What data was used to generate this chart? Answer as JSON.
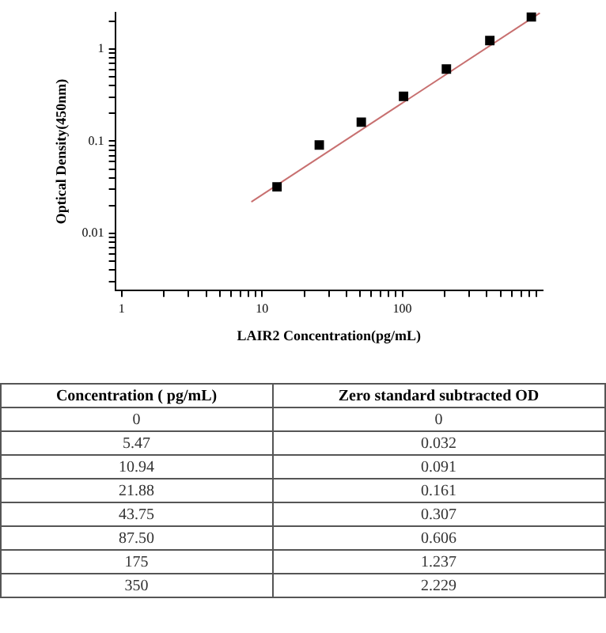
{
  "chart_data": [
    {
      "type": "scatter",
      "xlabel": "LAIR2 Concentration(pg/mL)",
      "ylabel": "Optical Density(450nm)",
      "log": "xy",
      "grid": false,
      "legend": false,
      "xlim": [
        0.9,
        1000
      ],
      "ylim": [
        0.0024,
        2.5
      ],
      "xticks": [
        1,
        {
          "value": 2,
          "label": null
        },
        {
          "value": 3,
          "label": null
        },
        {
          "value": 4,
          "label": null
        },
        {
          "value": 5,
          "label": null
        },
        {
          "value": 6,
          "label": null
        },
        {
          "value": 7,
          "label": null
        },
        {
          "value": 8,
          "label": null
        },
        {
          "value": 9,
          "label": null
        },
        10,
        {
          "value": 20,
          "label": null
        },
        {
          "value": 30,
          "label": null
        },
        {
          "value": 40,
          "label": null
        },
        {
          "value": 50,
          "label": null
        },
        {
          "value": 60,
          "label": null
        },
        {
          "value": 70,
          "label": null
        },
        {
          "value": 80,
          "label": null
        },
        {
          "value": 90,
          "label": null
        },
        100,
        {
          "value": 200,
          "label": null
        },
        {
          "value": 300,
          "label": null
        },
        {
          "value": 400,
          "label": null
        },
        {
          "value": 500,
          "label": null
        },
        {
          "value": 600,
          "label": null
        },
        {
          "value": 700,
          "label": null
        },
        {
          "value": 800,
          "label": null
        },
        {
          "value": 900,
          "label": null
        }
      ],
      "yticks": [
        {
          "value": 0.003,
          "label": null
        },
        {
          "value": 0.004,
          "label": null
        },
        {
          "value": 0.005,
          "label": null
        },
        {
          "value": 0.006,
          "label": null
        },
        {
          "value": 0.007,
          "label": null
        },
        {
          "value": 0.008,
          "label": null
        },
        {
          "value": 0.009,
          "label": null
        },
        0.01,
        {
          "value": 0.02,
          "label": null
        },
        {
          "value": 0.03,
          "label": null
        },
        {
          "value": 0.04,
          "label": null
        },
        {
          "value": 0.05,
          "label": null
        },
        {
          "value": 0.06,
          "label": null
        },
        {
          "value": 0.07,
          "label": null
        },
        {
          "value": 0.08,
          "label": null
        },
        {
          "value": 0.09,
          "label": null
        },
        0.1,
        {
          "value": 0.2,
          "label": null
        },
        {
          "value": 0.3,
          "label": null
        },
        {
          "value": 0.4,
          "label": null
        },
        {
          "value": 0.5,
          "label": null
        },
        {
          "value": 0.6,
          "label": null
        },
        {
          "value": 0.7,
          "label": null
        },
        {
          "value": 0.8,
          "label": null
        },
        {
          "value": 0.9,
          "label": null
        },
        1,
        {
          "value": 2,
          "label": null
        }
      ],
      "series": [
        {
          "type": "scatter",
          "color": "#000000",
          "marker": "square",
          "x": [
            12.8,
            25.6,
            51,
            102,
            206,
            420,
            830
          ],
          "values": [
            0.032,
            0.091,
            0.161,
            0.307,
            0.606,
            1.237,
            2.229
          ]
        },
        {
          "type": "line",
          "color": "#c87070",
          "marker": "none",
          "x": [
            8.4,
            955
          ],
          "values": [
            0.022,
            2.46
          ]
        }
      ]
    },
    {
      "type": "other",
      "xlabel": "Concentration ( pg/mL)",
      "ylabel": "Zero standard subtracted OD",
      "data_labels": true,
      "categories": [
        "0",
        "5.47",
        "10.94",
        "21.88",
        "43.75",
        "87.50",
        "175",
        "350"
      ],
      "values": [
        0,
        0.032,
        0.091,
        0.161,
        0.307,
        0.606,
        1.237,
        2.229
      ]
    }
  ]
}
